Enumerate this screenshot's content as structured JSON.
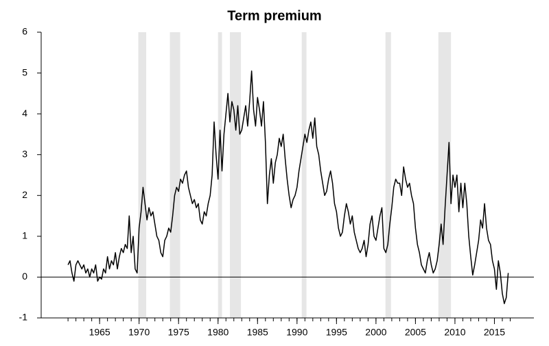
{
  "chart_data": {
    "type": "line",
    "title": "Term premium",
    "x": [
      1961,
      1961.25,
      1961.5,
      1961.75,
      1962,
      1962.25,
      1962.5,
      1962.75,
      1963,
      1963.25,
      1963.5,
      1963.75,
      1964,
      1964.25,
      1964.5,
      1964.75,
      1965,
      1965.25,
      1965.5,
      1965.75,
      1966,
      1966.25,
      1966.5,
      1966.75,
      1967,
      1967.25,
      1967.5,
      1967.75,
      1968,
      1968.25,
      1968.5,
      1968.75,
      1969,
      1969.25,
      1969.5,
      1969.75,
      1970,
      1970.25,
      1970.5,
      1970.75,
      1971,
      1971.25,
      1971.5,
      1971.75,
      1972,
      1972.25,
      1972.5,
      1972.75,
      1973,
      1973.25,
      1973.5,
      1973.75,
      1974,
      1974.25,
      1974.5,
      1974.75,
      1975,
      1975.25,
      1975.5,
      1975.75,
      1976,
      1976.25,
      1976.5,
      1976.75,
      1977,
      1977.25,
      1977.5,
      1977.75,
      1978,
      1978.25,
      1978.5,
      1978.75,
      1979,
      1979.25,
      1979.5,
      1979.75,
      1980,
      1980.25,
      1980.5,
      1980.75,
      1981,
      1981.25,
      1981.5,
      1981.75,
      1982,
      1982.25,
      1982.5,
      1982.75,
      1983,
      1983.25,
      1983.5,
      1983.75,
      1984,
      1984.25,
      1984.5,
      1984.75,
      1985,
      1985.25,
      1985.5,
      1985.75,
      1986,
      1986.25,
      1986.5,
      1986.75,
      1987,
      1987.25,
      1987.5,
      1987.75,
      1988,
      1988.25,
      1988.5,
      1988.75,
      1989,
      1989.25,
      1989.5,
      1989.75,
      1990,
      1990.25,
      1990.5,
      1990.75,
      1991,
      1991.25,
      1991.5,
      1991.75,
      1992,
      1992.25,
      1992.5,
      1992.75,
      1993,
      1993.25,
      1993.5,
      1993.75,
      1994,
      1994.25,
      1994.5,
      1994.75,
      1995,
      1995.25,
      1995.5,
      1995.75,
      1996,
      1996.25,
      1996.5,
      1996.75,
      1997,
      1997.25,
      1997.5,
      1997.75,
      1998,
      1998.25,
      1998.5,
      1998.75,
      1999,
      1999.25,
      1999.5,
      1999.75,
      2000,
      2000.25,
      2000.5,
      2000.75,
      2001,
      2001.25,
      2001.5,
      2001.75,
      2002,
      2002.25,
      2002.5,
      2002.75,
      2003,
      2003.25,
      2003.5,
      2003.75,
      2004,
      2004.25,
      2004.5,
      2004.75,
      2005,
      2005.25,
      2005.5,
      2005.75,
      2006,
      2006.25,
      2006.5,
      2006.75,
      2007,
      2007.25,
      2007.5,
      2007.75,
      2008,
      2008.25,
      2008.5,
      2008.75,
      2009,
      2009.25,
      2009.5,
      2009.75,
      2010,
      2010.25,
      2010.5,
      2010.75,
      2011,
      2011.25,
      2011.5,
      2011.75,
      2012,
      2012.25,
      2012.5,
      2012.75,
      2013,
      2013.25,
      2013.5,
      2013.75,
      2014,
      2014.25,
      2014.5,
      2014.75,
      2015,
      2015.25,
      2015.5,
      2015.75,
      2016,
      2016.25,
      2016.5,
      2016.75
    ],
    "values": [
      0.3,
      0.4,
      0.1,
      -0.1,
      0.3,
      0.4,
      0.3,
      0.2,
      0.3,
      0.1,
      0.2,
      0.0,
      0.2,
      0.1,
      0.3,
      -0.1,
      0.0,
      -0.05,
      0.2,
      0.1,
      0.5,
      0.2,
      0.4,
      0.3,
      0.6,
      0.2,
      0.5,
      0.7,
      0.6,
      0.8,
      0.7,
      1.5,
      0.6,
      1.0,
      0.2,
      0.1,
      1.2,
      1.6,
      2.2,
      1.8,
      1.4,
      1.7,
      1.5,
      1.6,
      1.3,
      1.0,
      0.9,
      0.6,
      0.5,
      0.9,
      1.0,
      1.2,
      1.1,
      1.5,
      2.0,
      2.2,
      2.1,
      2.4,
      2.3,
      2.5,
      2.6,
      2.2,
      2.0,
      1.8,
      1.9,
      1.7,
      1.8,
      1.4,
      1.3,
      1.6,
      1.5,
      1.8,
      2.0,
      2.5,
      3.8,
      3.0,
      2.4,
      3.6,
      2.6,
      3.5,
      4.0,
      4.5,
      3.8,
      4.3,
      4.1,
      3.6,
      4.2,
      3.5,
      3.6,
      3.9,
      4.2,
      3.7,
      4.3,
      5.05,
      4.1,
      3.7,
      4.4,
      4.1,
      3.7,
      4.3,
      3.3,
      1.8,
      2.5,
      2.9,
      2.3,
      2.8,
      3.0,
      3.4,
      3.2,
      3.5,
      2.9,
      2.4,
      2.0,
      1.7,
      1.9,
      2.0,
      2.2,
      2.6,
      2.9,
      3.2,
      3.5,
      3.3,
      3.6,
      3.8,
      3.4,
      3.9,
      3.2,
      3.0,
      2.6,
      2.3,
      2.0,
      2.1,
      2.4,
      2.6,
      2.3,
      1.8,
      1.6,
      1.2,
      1.0,
      1.1,
      1.5,
      1.8,
      1.6,
      1.3,
      1.5,
      1.1,
      0.9,
      0.7,
      0.6,
      0.7,
      0.9,
      0.5,
      0.8,
      1.3,
      1.5,
      1.0,
      0.9,
      1.2,
      1.5,
      1.7,
      0.7,
      0.6,
      0.8,
      1.3,
      1.7,
      2.2,
      2.4,
      2.3,
      2.3,
      2.0,
      2.7,
      2.4,
      2.2,
      2.3,
      2.0,
      1.8,
      1.2,
      0.8,
      0.6,
      0.3,
      0.2,
      0.1,
      0.4,
      0.6,
      0.3,
      0.1,
      0.2,
      0.4,
      0.8,
      1.3,
      0.8,
      1.7,
      2.5,
      3.3,
      1.8,
      2.5,
      2.2,
      2.5,
      1.6,
      2.3,
      1.7,
      2.3,
      1.8,
      1.0,
      0.5,
      0.05,
      0.3,
      0.6,
      0.9,
      1.4,
      1.2,
      1.8,
      1.2,
      0.9,
      0.8,
      0.4,
      0.2,
      -0.3,
      0.4,
      0.1,
      -0.4,
      -0.65,
      -0.5,
      0.1
    ],
    "color": "#000000",
    "recessions": [
      [
        1969.9,
        1970.9
      ],
      [
        1973.9,
        1975.2
      ],
      [
        1980.0,
        1980.5
      ],
      [
        1981.5,
        1982.9
      ],
      [
        1990.6,
        1991.2
      ],
      [
        2001.2,
        2001.9
      ],
      [
        2007.9,
        2009.5
      ]
    ],
    "recession_color": "#e6e6e6",
    "hline": 0,
    "xlim": [
      1957.6,
      2020
    ],
    "xticks": [
      1965,
      1970,
      1975,
      1980,
      1985,
      1990,
      1995,
      2000,
      2005,
      2010,
      2015
    ],
    "xminor_ticks": [
      1961,
      1962,
      1963,
      1964,
      1965,
      1966,
      1967,
      1968,
      1969,
      1970,
      1971,
      1972,
      1973,
      1974,
      1975,
      1976,
      1977,
      1978,
      1979,
      1980,
      1981,
      1982,
      1983,
      1984,
      1985,
      1986,
      1987,
      1988,
      1989,
      1990,
      1991,
      1992,
      1993,
      1994,
      1995,
      1996,
      1997,
      1998,
      1999,
      2000,
      2001,
      2002,
      2003,
      2004,
      2005,
      2006,
      2007,
      2008,
      2009,
      2010,
      2011,
      2012,
      2013,
      2014,
      2015,
      2016,
      2017
    ],
    "ylim": [
      -1,
      6
    ],
    "yticks": [
      -1,
      0,
      1,
      2,
      3,
      4,
      5,
      6
    ]
  }
}
